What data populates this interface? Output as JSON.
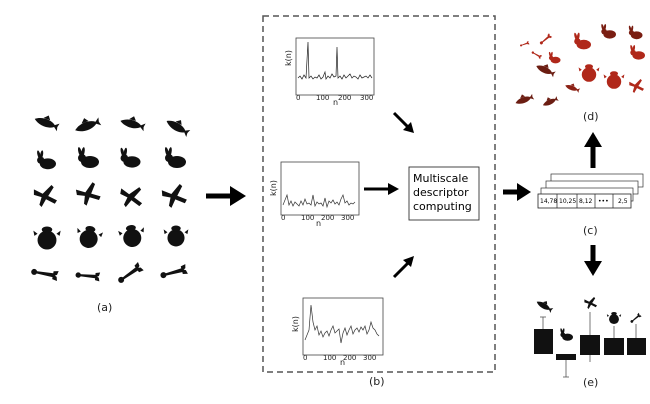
{
  "labels": {
    "a": "(a)",
    "b": "(b)",
    "c": "(c)",
    "d": "(d)",
    "e": "(e)"
  },
  "process_box": {
    "line1": "Multiscale",
    "line2": "descriptor",
    "line3": "computing"
  },
  "plots": {
    "ylabel": "k(n)",
    "xlabel": "n"
  },
  "descriptor_values": [
    "14,78",
    "10,25",
    "8,12",
    "•••",
    "2,5"
  ],
  "colors": {
    "silhouette": "#111111",
    "red_shape": "#b0281a",
    "dark_red_shape": "#6b1d12",
    "dashed_border": "#555555"
  },
  "icons": {
    "shape_row_1": "fish-icon",
    "shape_row_2": "rabbit-icon",
    "shape_row_3": "plane-icon",
    "shape_row_4": "bug-icon",
    "shape_row_5": "wrench-icon"
  }
}
